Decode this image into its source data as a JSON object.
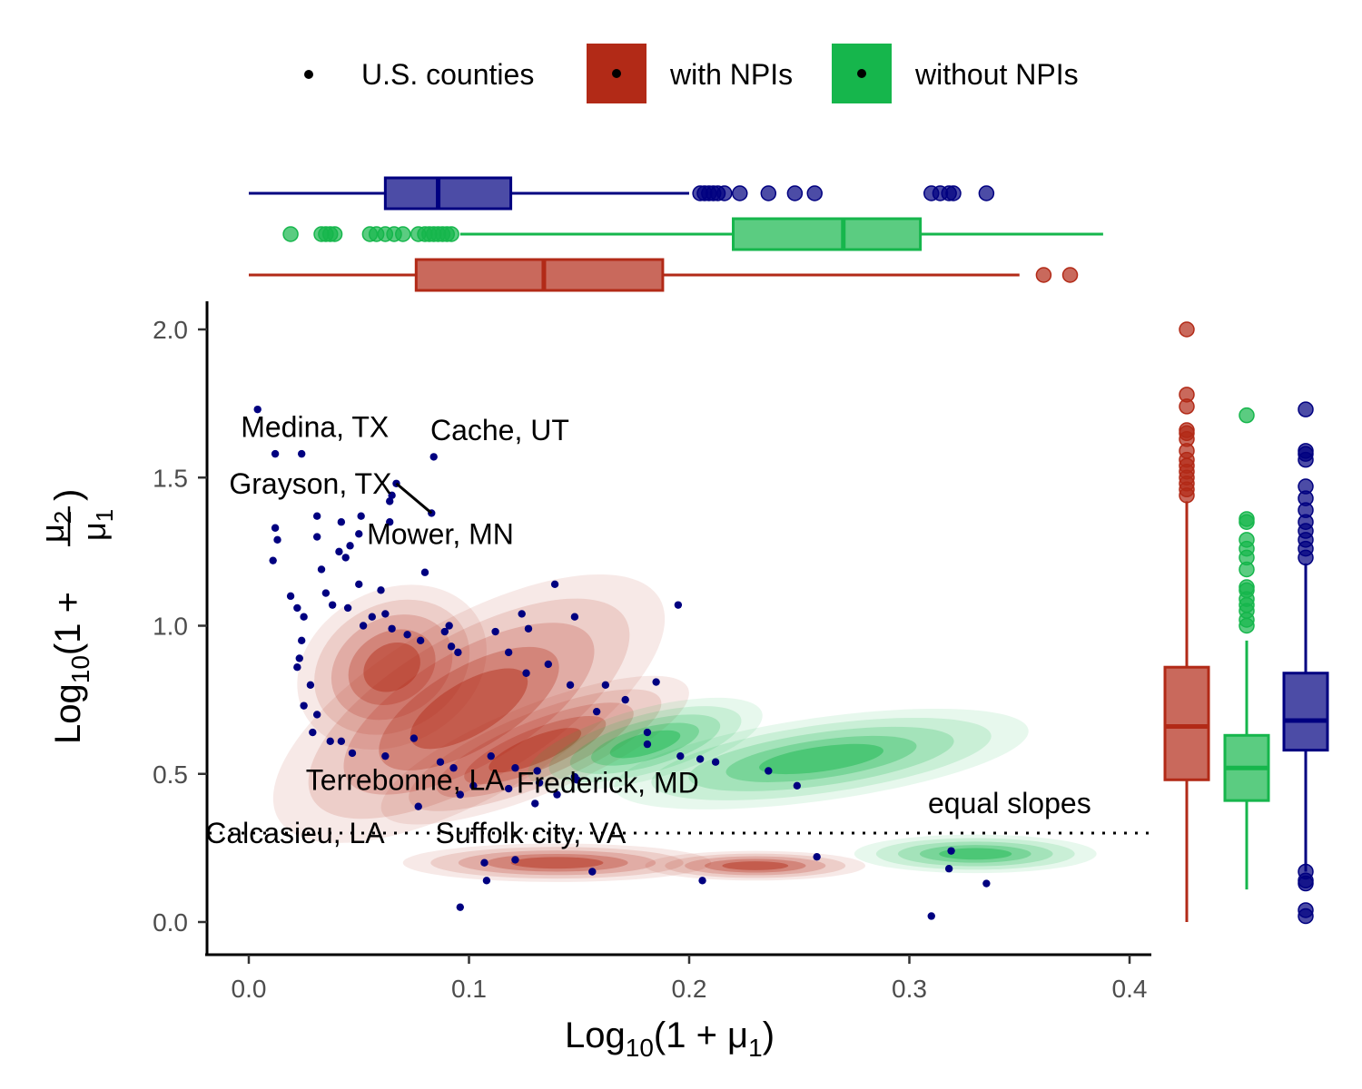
{
  "chart_data": {
    "type": "scatter",
    "legend": {
      "placement": "top",
      "entries": [
        {
          "label": "U.S. counties",
          "color": "#000000",
          "key": "point"
        },
        {
          "label": "with NPIs",
          "color": "#B22A17",
          "key": "fill"
        },
        {
          "label": "without NPIs",
          "color": "#16B64C",
          "key": "fill"
        }
      ]
    },
    "xlabel": "Log10(1 + μ1)",
    "ylabel": "Log10(1 + μ2/μ1)",
    "xlim": [
      -0.02,
      0.41
    ],
    "ylim": [
      -0.1,
      2.1
    ],
    "xticks": [
      {
        "v": 0.0,
        "label": "0.0"
      },
      {
        "v": 0.1,
        "label": "0.1"
      },
      {
        "v": 0.2,
        "label": "0.2"
      },
      {
        "v": 0.3,
        "label": "0.3"
      },
      {
        "v": 0.4,
        "label": "0.4"
      }
    ],
    "yticks": [
      {
        "v": 0.0,
        "label": "0.0"
      },
      {
        "v": 0.5,
        "label": "0.5"
      },
      {
        "v": 1.0,
        "label": "1.0"
      },
      {
        "v": 1.5,
        "label": "1.5"
      },
      {
        "v": 2.0,
        "label": "2.0"
      }
    ],
    "grid": false,
    "colors": {
      "counties": "#000080",
      "with_npis": "#B22A17",
      "without_npis": "#16B64C"
    },
    "reference_line": {
      "y": 0.3,
      "label": "equal slopes",
      "style": "dotted"
    },
    "annotations": [
      {
        "label": "Medina, TX",
        "x": 0.03,
        "y": 1.67
      },
      {
        "label": "Cache, UT",
        "x": 0.114,
        "y": 1.66
      },
      {
        "label": "Grayson, TX",
        "x": 0.028,
        "y": 1.48
      },
      {
        "label": "Mower, MN",
        "x": 0.087,
        "y": 1.31
      },
      {
        "label": "Terrebonne, LA",
        "x": 0.071,
        "y": 0.48
      },
      {
        "label": "Frederick, MD",
        "x": 0.163,
        "y": 0.47
      },
      {
        "label": "Calcasieu, LA",
        "x": 0.021,
        "y": 0.3
      },
      {
        "label": "Suffolk city, VA",
        "x": 0.128,
        "y": 0.3
      }
    ],
    "density_with_npis": [
      {
        "cx": 0.1,
        "cy": 0.72,
        "rx": 0.1,
        "ry": 0.3,
        "angle": -30
      },
      {
        "cx": 0.13,
        "cy": 0.58,
        "rx": 0.075,
        "ry": 0.15,
        "angle": -22
      },
      {
        "cx": 0.065,
        "cy": 0.86,
        "rx": 0.045,
        "ry": 0.26,
        "angle": -28
      },
      {
        "cx": 0.14,
        "cy": 0.2,
        "rx": 0.07,
        "ry": 0.065,
        "angle": 0
      },
      {
        "cx": 0.23,
        "cy": 0.19,
        "rx": 0.05,
        "ry": 0.05,
        "angle": 0
      }
    ],
    "density_without_npis": [
      {
        "cx": 0.26,
        "cy": 0.55,
        "rx": 0.095,
        "ry": 0.14,
        "angle": -8
      },
      {
        "cx": 0.18,
        "cy": 0.6,
        "rx": 0.055,
        "ry": 0.12,
        "angle": -15
      },
      {
        "cx": 0.33,
        "cy": 0.23,
        "rx": 0.055,
        "ry": 0.065,
        "angle": 0
      }
    ],
    "points": [
      [
        0.004,
        1.73
      ],
      [
        0.012,
        1.58
      ],
      [
        0.024,
        1.58
      ],
      [
        0.084,
        1.57
      ],
      [
        0.012,
        1.33
      ],
      [
        0.013,
        1.29
      ],
      [
        0.011,
        1.22
      ],
      [
        0.067,
        1.48
      ],
      [
        0.065,
        1.44
      ],
      [
        0.064,
        1.42
      ],
      [
        0.083,
        1.38
      ],
      [
        0.051,
        1.37
      ],
      [
        0.064,
        1.35
      ],
      [
        0.031,
        1.37
      ],
      [
        0.042,
        1.35
      ],
      [
        0.05,
        1.31
      ],
      [
        0.046,
        1.27
      ],
      [
        0.044,
        1.23
      ],
      [
        0.08,
        1.18
      ],
      [
        0.031,
        1.3
      ],
      [
        0.041,
        1.25
      ],
      [
        0.033,
        1.19
      ],
      [
        0.05,
        1.14
      ],
      [
        0.06,
        1.12
      ],
      [
        0.139,
        1.14
      ],
      [
        0.195,
        1.07
      ],
      [
        0.019,
        1.1
      ],
      [
        0.022,
        1.06
      ],
      [
        0.025,
        1.03
      ],
      [
        0.024,
        0.95
      ],
      [
        0.023,
        0.89
      ],
      [
        0.035,
        1.11
      ],
      [
        0.038,
        1.07
      ],
      [
        0.045,
        1.06
      ],
      [
        0.056,
        1.03
      ],
      [
        0.052,
        1.0
      ],
      [
        0.062,
        1.04
      ],
      [
        0.065,
        0.99
      ],
      [
        0.072,
        0.97
      ],
      [
        0.078,
        0.95
      ],
      [
        0.089,
        0.98
      ],
      [
        0.092,
        0.93
      ],
      [
        0.095,
        0.91
      ],
      [
        0.091,
        1.0
      ],
      [
        0.124,
        1.04
      ],
      [
        0.127,
        0.99
      ],
      [
        0.112,
        0.98
      ],
      [
        0.148,
        1.03
      ],
      [
        0.118,
        0.91
      ],
      [
        0.136,
        0.87
      ],
      [
        0.126,
        0.84
      ],
      [
        0.146,
        0.8
      ],
      [
        0.162,
        0.8
      ],
      [
        0.185,
        0.81
      ],
      [
        0.171,
        0.75
      ],
      [
        0.158,
        0.71
      ],
      [
        0.181,
        0.64
      ],
      [
        0.181,
        0.6
      ],
      [
        0.196,
        0.56
      ],
      [
        0.205,
        0.55
      ],
      [
        0.212,
        0.54
      ],
      [
        0.236,
        0.51
      ],
      [
        0.249,
        0.46
      ],
      [
        0.022,
        0.86
      ],
      [
        0.028,
        0.8
      ],
      [
        0.025,
        0.73
      ],
      [
        0.031,
        0.7
      ],
      [
        0.029,
        0.64
      ],
      [
        0.037,
        0.61
      ],
      [
        0.042,
        0.61
      ],
      [
        0.047,
        0.57
      ],
      [
        0.062,
        0.56
      ],
      [
        0.075,
        0.62
      ],
      [
        0.087,
        0.54
      ],
      [
        0.093,
        0.52
      ],
      [
        0.11,
        0.56
      ],
      [
        0.121,
        0.52
      ],
      [
        0.131,
        0.51
      ],
      [
        0.148,
        0.49
      ],
      [
        0.149,
        0.48
      ],
      [
        0.132,
        0.47
      ],
      [
        0.118,
        0.45
      ],
      [
        0.14,
        0.43
      ],
      [
        0.102,
        0.46
      ],
      [
        0.096,
        0.43
      ],
      [
        0.13,
        0.4
      ],
      [
        0.077,
        0.39
      ],
      [
        0.107,
        0.2
      ],
      [
        0.121,
        0.21
      ],
      [
        0.108,
        0.14
      ],
      [
        0.096,
        0.05
      ],
      [
        0.156,
        0.17
      ],
      [
        0.206,
        0.14
      ],
      [
        0.258,
        0.22
      ],
      [
        0.319,
        0.24
      ],
      [
        0.318,
        0.18
      ],
      [
        0.335,
        0.13
      ],
      [
        0.31,
        0.02
      ]
    ],
    "marginal_x": [
      {
        "name": "U.S. counties",
        "color": "#000080",
        "whisker_low": 0.0,
        "q1": 0.062,
        "median": 0.086,
        "q3": 0.119,
        "whisker_high": 0.2,
        "outliers": [
          0.205,
          0.207,
          0.209,
          0.211,
          0.213,
          0.216,
          0.223,
          0.236,
          0.248,
          0.257,
          0.31,
          0.314,
          0.318,
          0.32,
          0.335
        ]
      },
      {
        "name": "without NPIs",
        "color": "#16B64C",
        "whisker_low": 0.096,
        "q1": 0.22,
        "median": 0.27,
        "q3": 0.305,
        "whisker_high": 0.388,
        "outliers": [
          0.019,
          0.033,
          0.035,
          0.037,
          0.039,
          0.055,
          0.058,
          0.062,
          0.066,
          0.07,
          0.077,
          0.08,
          0.082,
          0.084,
          0.086,
          0.088,
          0.09,
          0.092
        ]
      },
      {
        "name": "with NPIs",
        "color": "#B22A17",
        "whisker_low": 0.0,
        "q1": 0.076,
        "median": 0.134,
        "q3": 0.188,
        "whisker_high": 0.35,
        "outliers": [
          0.361,
          0.373
        ]
      }
    ],
    "marginal_y": [
      {
        "name": "with NPIs",
        "color": "#B22A17",
        "whisker_low": 0.0,
        "q1": 0.48,
        "median": 0.66,
        "q3": 0.86,
        "whisker_high": 1.42,
        "outliers": [
          1.44,
          1.46,
          1.48,
          1.5,
          1.52,
          1.54,
          1.56,
          1.59,
          1.63,
          1.65,
          1.66,
          1.74,
          1.78,
          2.0
        ]
      },
      {
        "name": "without NPIs",
        "color": "#16B64C",
        "whisker_low": 0.11,
        "q1": 0.41,
        "median": 0.52,
        "q3": 0.63,
        "whisker_high": 0.95,
        "outliers": [
          1.0,
          1.02,
          1.05,
          1.07,
          1.09,
          1.12,
          1.13,
          1.19,
          1.23,
          1.26,
          1.29,
          1.35,
          1.36,
          1.71
        ]
      },
      {
        "name": "U.S. counties",
        "color": "#000080",
        "whisker_low": 0.17,
        "q1": 0.58,
        "median": 0.68,
        "q3": 0.84,
        "whisker_high": 1.21,
        "outliers": [
          0.02,
          0.04,
          0.13,
          0.14,
          0.17,
          1.23,
          1.26,
          1.29,
          1.32,
          1.35,
          1.39,
          1.43,
          1.47,
          1.56,
          1.58,
          1.59,
          1.73
        ]
      }
    ]
  }
}
